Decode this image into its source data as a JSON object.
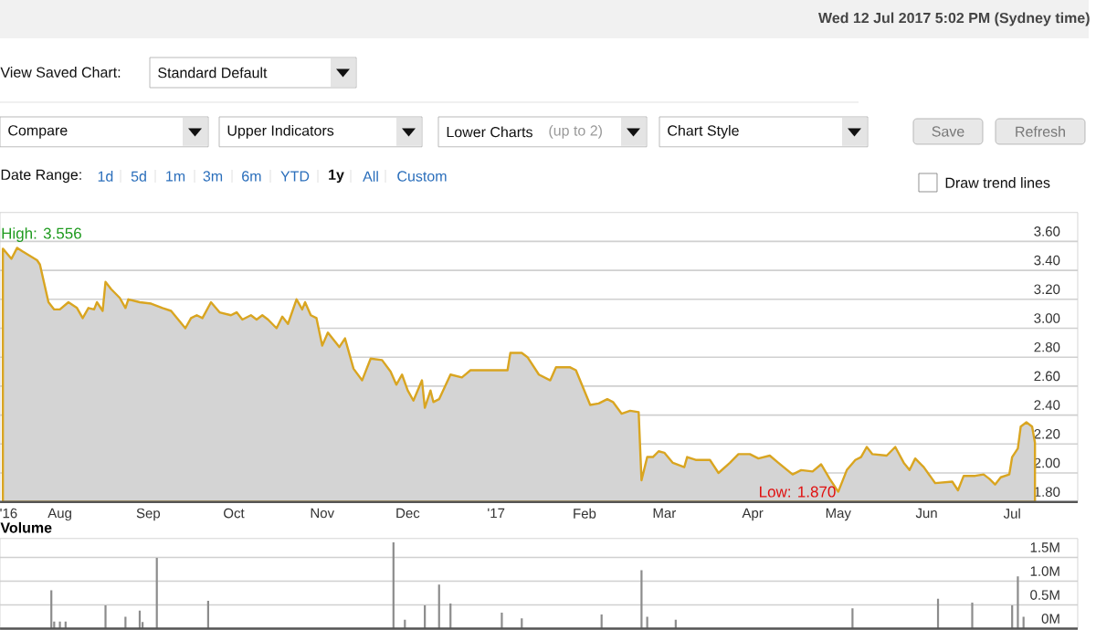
{
  "chart_data": [
    {
      "type": "other",
      "annotations": [
        "Wed 12 Jul 2017 5:02 PM (Sydney time)",
        "View Saved Chart:",
        "Standard Default",
        "Compare",
        "Upper Indicators",
        "Lower Charts",
        "(up to 2)",
        "Chart Style",
        "Save",
        "Refresh",
        "Date Range:",
        "1d",
        "5d",
        "1m",
        "3m",
        "6m",
        "YTD",
        "1y",
        "All",
        "Custom",
        "Draw trend lines"
      ]
    },
    {
      "type": "area",
      "color": "#d9a521",
      "grid": "y",
      "xlim": [
        "2016-07-11",
        "2017-07-24"
      ],
      "ylim": [
        1.8,
        3.8
      ],
      "xticks": [
        {
          "value": "2016-07-14",
          "label": "'16"
        },
        {
          "value": "2016-08-01",
          "label": "Aug"
        },
        {
          "value": "2016-09-01",
          "label": "Sep"
        },
        {
          "value": "2016-10-01",
          "label": "Oct"
        },
        {
          "value": "2016-11-01",
          "label": "Nov"
        },
        {
          "value": "2016-12-01",
          "label": "Dec"
        },
        {
          "value": "2017-01-01",
          "label": "'17"
        },
        {
          "value": "2017-02-01",
          "label": "Feb"
        },
        {
          "value": "2017-03-01",
          "label": "Mar"
        },
        {
          "value": "2017-04-01",
          "label": "Apr"
        },
        {
          "value": "2017-05-01",
          "label": "May"
        },
        {
          "value": "2017-06-01",
          "label": "Jun"
        },
        {
          "value": "2017-07-01",
          "label": "Jul"
        }
      ],
      "yticks": [
        {
          "value": 1.8,
          "label": "1.80"
        },
        {
          "value": 2.0,
          "label": "2.00"
        },
        {
          "value": 2.2,
          "label": "2.20"
        },
        {
          "value": 2.4,
          "label": "2.40"
        },
        {
          "value": 2.6,
          "label": "2.60"
        },
        {
          "value": 2.8,
          "label": "2.80"
        },
        {
          "value": 3.0,
          "label": "3.00"
        },
        {
          "value": 3.2,
          "label": "3.20"
        },
        {
          "value": 3.4,
          "label": "3.40"
        },
        {
          "value": 3.6,
          "label": "3.60"
        }
      ],
      "annotations": [
        {
          "text": "High: 3.556",
          "x": "2016-07-17",
          "y": 3.556
        },
        {
          "text": "Low: 1.870",
          "x": "2017-05-01",
          "y": 1.87
        }
      ],
      "x": [
        "2016-07-12",
        "2016-07-15",
        "2016-07-17",
        "2016-07-19",
        "2016-07-24",
        "2016-07-25",
        "2016-07-28",
        "2016-07-30",
        "2016-08-01",
        "2016-08-04",
        "2016-08-07",
        "2016-08-09",
        "2016-08-11",
        "2016-08-13",
        "2016-08-14",
        "2016-08-16",
        "2016-08-17",
        "2016-08-19",
        "2016-08-22",
        "2016-08-24",
        "2016-08-25",
        "2016-08-29",
        "2016-09-02",
        "2016-09-06",
        "2016-09-09",
        "2016-09-14",
        "2016-09-16",
        "2016-09-18",
        "2016-09-20",
        "2016-09-23",
        "2016-09-26",
        "2016-09-30",
        "2016-10-02",
        "2016-10-04",
        "2016-10-07",
        "2016-10-09",
        "2016-10-11",
        "2016-10-13",
        "2016-10-16",
        "2016-10-18",
        "2016-10-20",
        "2016-10-23",
        "2016-10-25",
        "2016-10-26",
        "2016-10-28",
        "2016-10-30",
        "2016-11-01",
        "2016-11-03",
        "2016-11-07",
        "2016-11-09",
        "2016-11-12",
        "2016-11-15",
        "2016-11-18",
        "2016-11-22",
        "2016-11-25",
        "2016-11-27",
        "2016-11-29",
        "2016-12-01",
        "2016-12-03",
        "2016-12-06",
        "2016-12-07",
        "2016-12-09",
        "2016-12-10",
        "2016-12-12",
        "2016-12-16",
        "2016-12-20",
        "2016-12-23",
        "2017-01-05",
        "2017-01-06",
        "2017-01-10",
        "2017-01-12",
        "2017-01-16",
        "2017-01-20",
        "2017-01-22",
        "2017-01-27",
        "2017-01-29",
        "2017-02-03",
        "2017-02-06",
        "2017-02-09",
        "2017-02-11",
        "2017-02-14",
        "2017-02-17",
        "2017-02-20",
        "2017-02-21",
        "2017-02-23",
        "2017-02-25",
        "2017-02-27",
        "2017-03-01",
        "2017-03-04",
        "2017-03-08",
        "2017-03-09",
        "2017-03-12",
        "2017-03-17",
        "2017-03-20",
        "2017-03-24",
        "2017-03-27",
        "2017-03-31",
        "2017-04-03",
        "2017-04-07",
        "2017-04-10",
        "2017-04-15",
        "2017-04-18",
        "2017-04-22",
        "2017-04-25",
        "2017-04-28",
        "2017-05-01",
        "2017-05-04",
        "2017-05-07",
        "2017-05-09",
        "2017-05-11",
        "2017-05-13",
        "2017-05-18",
        "2017-05-21",
        "2017-05-24",
        "2017-05-26",
        "2017-05-28",
        "2017-05-31",
        "2017-06-04",
        "2017-06-10",
        "2017-06-12",
        "2017-06-14",
        "2017-06-18",
        "2017-06-21",
        "2017-06-23",
        "2017-06-25",
        "2017-06-27",
        "2017-06-30",
        "2017-07-01",
        "2017-07-03",
        "2017-07-04",
        "2017-07-06",
        "2017-07-08",
        "2017-07-09"
      ],
      "values": [
        3.55,
        3.48,
        3.556,
        3.53,
        3.47,
        3.44,
        3.18,
        3.13,
        3.13,
        3.18,
        3.14,
        3.07,
        3.14,
        3.13,
        3.18,
        3.12,
        3.32,
        3.27,
        3.21,
        3.14,
        3.2,
        3.18,
        3.17,
        3.14,
        3.12,
        3.0,
        3.07,
        3.09,
        3.07,
        3.18,
        3.11,
        3.09,
        3.11,
        3.06,
        3.09,
        3.06,
        3.09,
        3.06,
        3.0,
        3.08,
        3.03,
        3.2,
        3.13,
        3.18,
        3.09,
        3.07,
        2.88,
        2.97,
        2.87,
        2.93,
        2.72,
        2.64,
        2.79,
        2.78,
        2.7,
        2.61,
        2.68,
        2.57,
        2.5,
        2.64,
        2.45,
        2.57,
        2.49,
        2.51,
        2.68,
        2.66,
        2.71,
        2.71,
        2.83,
        2.83,
        2.8,
        2.68,
        2.64,
        2.73,
        2.73,
        2.71,
        2.47,
        2.48,
        2.51,
        2.49,
        2.41,
        2.43,
        2.42,
        1.95,
        2.11,
        2.11,
        2.15,
        2.14,
        2.07,
        2.04,
        2.11,
        2.09,
        2.09,
        2.0,
        2.07,
        2.13,
        2.13,
        2.1,
        2.12,
        2.07,
        1.99,
        2.02,
        2.01,
        2.06,
        1.96,
        1.87,
        2.02,
        2.09,
        2.11,
        2.18,
        2.13,
        2.12,
        2.18,
        2.07,
        2.02,
        2.1,
        2.04,
        1.93,
        1.94,
        1.88,
        1.98,
        1.98,
        1.99,
        1.96,
        1.92,
        1.97,
        1.99,
        2.11,
        2.17,
        2.32,
        2.35,
        2.32,
        2.21
      ]
    },
    {
      "type": "bar",
      "title": "Volume",
      "color": "#8c8c8c",
      "grid": "y",
      "tick_labels": "y",
      "xlim": [
        "2016-07-11",
        "2017-07-24"
      ],
      "ylim": [
        0,
        1.9
      ],
      "yticks": [
        {
          "value": 0,
          "label": "0M"
        },
        {
          "value": 0.5,
          "label": "0.5M"
        },
        {
          "value": 1.0,
          "label": "1.0M"
        },
        {
          "value": 1.5,
          "label": "1.5M"
        }
      ],
      "x": [
        "2016-07-29",
        "2016-07-30",
        "2016-08-01",
        "2016-08-03",
        "2016-08-17",
        "2016-08-24",
        "2016-08-29",
        "2016-08-30",
        "2016-09-04",
        "2016-09-22",
        "2016-11-26",
        "2016-11-30",
        "2016-12-07",
        "2016-12-12",
        "2016-12-16",
        "2017-01-03",
        "2017-01-10",
        "2017-02-07",
        "2017-02-21",
        "2017-02-23",
        "2017-03-05",
        "2017-05-06",
        "2017-06-05",
        "2017-06-17",
        "2017-07-01",
        "2017-07-03",
        "2017-07-05"
      ],
      "values": [
        0.81,
        0.15,
        0.15,
        0.15,
        0.49,
        0.25,
        0.38,
        0.14,
        1.49,
        0.59,
        1.82,
        0.19,
        0.49,
        0.93,
        0.53,
        0.34,
        0.22,
        0.3,
        1.23,
        0.25,
        0.19,
        0.43,
        0.63,
        0.55,
        0.49,
        1.1,
        0.25
      ]
    }
  ]
}
